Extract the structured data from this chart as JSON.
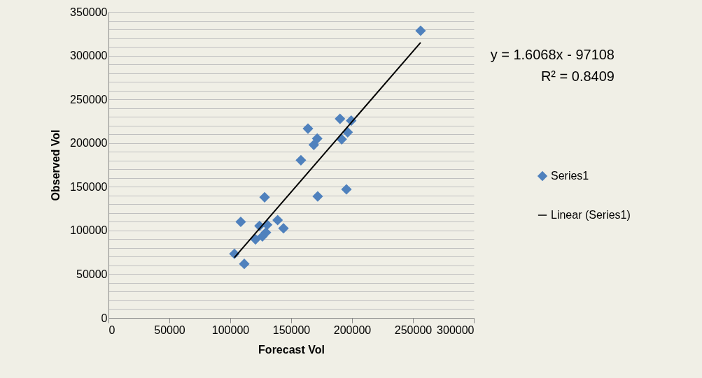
{
  "chart_data": {
    "type": "scatter",
    "xlabel": "Forecast Vol",
    "ylabel": "Observed Vol",
    "xlim": [
      0,
      300000
    ],
    "xticks": [
      0,
      50000,
      100000,
      150000,
      200000,
      250000,
      300000
    ],
    "ylim": [
      0,
      350000
    ],
    "yticks": [
      0,
      {
        "value": 10000,
        "label": null
      },
      {
        "value": 20000,
        "label": null
      },
      {
        "value": 30000,
        "label": null
      },
      {
        "value": 40000,
        "label": null
      },
      50000,
      {
        "value": 60000,
        "label": null
      },
      {
        "value": 70000,
        "label": null
      },
      {
        "value": 80000,
        "label": null
      },
      {
        "value": 90000,
        "label": null
      },
      100000,
      {
        "value": 110000,
        "label": null
      },
      {
        "value": 120000,
        "label": null
      },
      {
        "value": 130000,
        "label": null
      },
      {
        "value": 140000,
        "label": null
      },
      150000,
      {
        "value": 160000,
        "label": null
      },
      {
        "value": 170000,
        "label": null
      },
      {
        "value": 180000,
        "label": null
      },
      {
        "value": 190000,
        "label": null
      },
      200000,
      {
        "value": 210000,
        "label": null
      },
      {
        "value": 220000,
        "label": null
      },
      {
        "value": 230000,
        "label": null
      },
      {
        "value": 240000,
        "label": null
      },
      250000,
      {
        "value": 260000,
        "label": null
      },
      {
        "value": 270000,
        "label": null
      },
      {
        "value": 280000,
        "label": null
      },
      {
        "value": 290000,
        "label": null
      },
      300000,
      {
        "value": 310000,
        "label": null
      },
      {
        "value": 320000,
        "label": null
      },
      {
        "value": 330000,
        "label": null
      },
      {
        "value": 340000,
        "label": null
      },
      350000
    ],
    "grid": "y",
    "legend": "right",
    "marker": "diamond",
    "series": [
      {
        "name": "Series1",
        "color": "#4f81bd",
        "x": [
          103400,
          111500,
          108600,
          128200,
          124000,
          130300,
          129300,
          120700,
          126400,
          138900,
          143700,
          163800,
          171400,
          168600,
          158000,
          171800,
          195400,
          190100,
          199300,
          196400,
          191500,
          256300
        ],
        "values": [
          73300,
          61800,
          109900,
          138000,
          105200,
          106500,
          97700,
          89800,
          93200,
          111900,
          102500,
          216500,
          205100,
          197900,
          180300,
          139000,
          147000,
          227700,
          225600,
          212300,
          204300,
          328400
        ]
      },
      {
        "name": "Linear (Series1)",
        "type": "line",
        "color": "#000000",
        "line_style": "solid",
        "marker": "none",
        "x": [
          103400,
          256300
        ],
        "values": [
          69000,
          315000
        ]
      }
    ],
    "annotations": [
      "y = 1.6068x - 97108",
      "R² = 0.8409"
    ]
  }
}
